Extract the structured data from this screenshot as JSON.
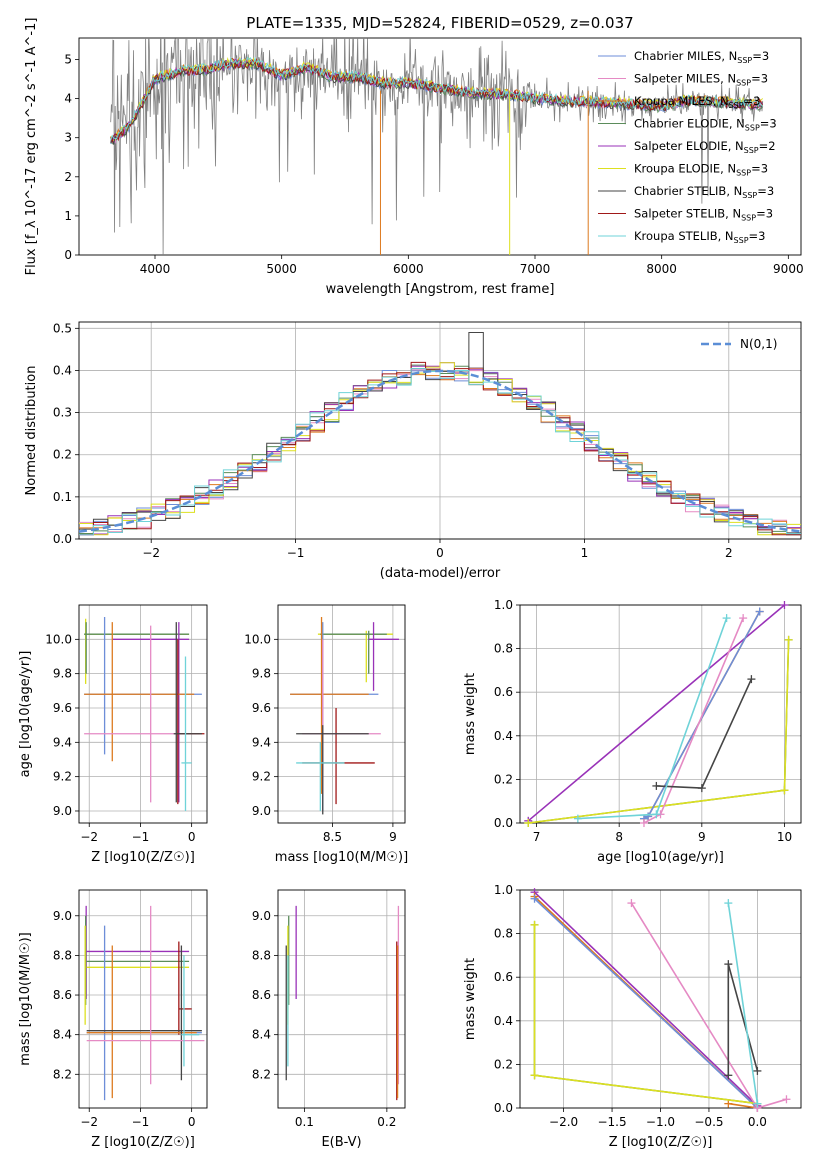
{
  "figure_title": "PLATE=1335, MJD=52824, FIBERID=0529, z=0.037",
  "colors": {
    "Chabrier MILES": "#6d8ed8",
    "Salpeter MILES": "#e58ac4",
    "Kroupa MILES": "#dd7a1f",
    "Chabrier ELODIE": "#5b8c5b",
    "Salpeter ELODIE": "#9932b8",
    "Kroupa ELODIE": "#dde020",
    "Chabrier STELIB": "#454545",
    "Salpeter STELIB": "#a01818",
    "Kroupa STELIB": "#6fd3d8",
    "data": "#808080",
    "normal": "#5b8ed6"
  },
  "chart_data": [
    {
      "id": "spectrum",
      "type": "line",
      "title": "PLATE=1335, MJD=52824, FIBERID=0529, z=0.037",
      "xlabel": "wavelength [Angstrom, rest frame]",
      "ylabel": "Flux [f_λ 10^-17 erg cm^-2 s^-1 A^-1]",
      "xlim": [
        3400,
        9100
      ],
      "ylim": [
        0,
        5.55
      ],
      "xticks": [
        4000,
        5000,
        6000,
        7000,
        8000,
        9000
      ],
      "yticks": [
        0,
        1,
        2,
        3,
        4,
        5
      ],
      "legend_position": "top-right",
      "legend": [
        {
          "name": "Chabrier MILES",
          "nssp": "3"
        },
        {
          "name": "Salpeter MILES",
          "nssp": "3"
        },
        {
          "name": "Kroupa MILES",
          "nssp": "3"
        },
        {
          "name": "Chabrier ELODIE",
          "nssp": "3"
        },
        {
          "name": "Salpeter ELODIE",
          "nssp": "2"
        },
        {
          "name": "Kroupa ELODIE",
          "nssp": "3"
        },
        {
          "name": "Chabrier STELIB",
          "nssp": "3"
        },
        {
          "name": "Salpeter STELIB",
          "nssp": "3"
        },
        {
          "name": "Kroupa STELIB",
          "nssp": "3"
        }
      ],
      "data_range": [
        3650,
        8800
      ],
      "model_continuum": [
        [
          3650,
          2.9
        ],
        [
          3800,
          3.3
        ],
        [
          3900,
          3.9
        ],
        [
          4000,
          4.5
        ],
        [
          4200,
          4.7
        ],
        [
          4400,
          4.75
        ],
        [
          4600,
          4.9
        ],
        [
          4800,
          4.9
        ],
        [
          5000,
          4.6
        ],
        [
          5200,
          4.8
        ],
        [
          5400,
          4.55
        ],
        [
          5600,
          4.55
        ],
        [
          5800,
          4.4
        ],
        [
          6000,
          4.4
        ],
        [
          6200,
          4.3
        ],
        [
          6500,
          4.15
        ],
        [
          6800,
          4.1
        ],
        [
          7000,
          4.0
        ],
        [
          7200,
          3.95
        ],
        [
          7500,
          3.9
        ],
        [
          7800,
          3.85
        ],
        [
          8000,
          3.8
        ],
        [
          8200,
          3.95
        ],
        [
          8500,
          3.9
        ],
        [
          8800,
          3.85
        ]
      ]
    },
    {
      "id": "residuals",
      "type": "histogram",
      "xlabel": "(data-model)/error",
      "ylabel": "Normed distribution",
      "xlim": [
        -2.5,
        2.5
      ],
      "ylim": [
        0,
        0.515
      ],
      "xticks": [
        -2,
        -1,
        0,
        1,
        2
      ],
      "yticks": [
        0.0,
        0.1,
        0.2,
        0.3,
        0.4,
        0.5
      ],
      "legend_position": "top-right",
      "normal_label": "N(0,1)",
      "bin_width": 0.1
    },
    {
      "id": "age_vs_Z",
      "type": "errorbar",
      "xlabel": "Z [log10(Z/Z☉)]",
      "ylabel": "age  [log10(age/yr)]",
      "xlim": [
        -2.2,
        0.3
      ],
      "ylim": [
        8.93,
        10.2
      ],
      "xticks": [
        -2,
        -1,
        0
      ],
      "yticks": [
        9.0,
        9.2,
        9.4,
        9.6,
        9.8,
        10.0
      ],
      "series": [
        {
          "model": "Kroupa ELODIE",
          "hz": [
            -2.1,
            -0.05
          ],
          "hy": 10.03,
          "vx": -2.07,
          "vy": [
            9.74,
            10.12
          ]
        },
        {
          "model": "Chabrier ELODIE",
          "hz": [
            -2.1,
            -0.05
          ],
          "hy": 10.03,
          "vx": -2.06,
          "vy": [
            9.8,
            10.1
          ]
        },
        {
          "model": "Salpeter ELODIE",
          "hz": [
            -1.55,
            -0.05
          ],
          "hy": 10.0,
          "vx": -0.25,
          "vy": [
            9.05,
            10.1
          ]
        },
        {
          "model": "Chabrier MILES",
          "hz": [
            -2.1,
            0.2
          ],
          "hy": 9.68,
          "vx": -1.7,
          "vy": [
            9.33,
            10.13
          ]
        },
        {
          "model": "Kroupa MILES",
          "hz": [
            -2.1,
            0.05
          ],
          "hy": 9.68,
          "vx": -1.55,
          "vy": [
            9.29,
            10.1
          ]
        },
        {
          "model": "Salpeter MILES",
          "hz": [
            -2.1,
            0.15
          ],
          "hy": 9.45,
          "vx": -0.8,
          "vy": [
            9.05,
            10.08
          ]
        },
        {
          "model": "Salpeter STELIB",
          "hz": [
            -0.3,
            0.25
          ],
          "hy": 9.45,
          "vx": -0.27,
          "vy": [
            9.04,
            10.0
          ]
        },
        {
          "model": "Chabrier STELIB",
          "hz": [
            -0.35,
            0.2
          ],
          "hy": 9.45,
          "vx": -0.3,
          "vy": [
            9.05,
            10.1
          ]
        },
        {
          "model": "Kroupa STELIB",
          "hz": [
            -0.2,
            0.0
          ],
          "hy": 9.28,
          "vx": -0.12,
          "vy": [
            9.0,
            9.9
          ]
        }
      ]
    },
    {
      "id": "age_vs_mass",
      "type": "errorbar",
      "xlabel": "mass [log10(M/M☉)]",
      "ylabel": "",
      "xlim": [
        8.05,
        9.1
      ],
      "ylim": [
        8.93,
        10.2
      ],
      "xticks": [
        8.5,
        9.0
      ],
      "yticks": [
        9.0,
        9.2,
        9.4,
        9.6,
        9.8,
        10.0
      ],
      "series": [
        {
          "model": "Kroupa ELODIE",
          "hz": [
            8.38,
            9.0
          ],
          "hy": 10.03,
          "vx": 8.78,
          "vy": [
            9.75,
            10.05
          ]
        },
        {
          "model": "Chabrier ELODIE",
          "hz": [
            8.4,
            8.95
          ],
          "hy": 10.03,
          "vx": 8.8,
          "vy": [
            9.8,
            10.05
          ]
        },
        {
          "model": "Salpeter ELODIE",
          "hz": [
            8.8,
            9.05
          ],
          "hy": 10.0,
          "vx": 8.84,
          "vy": [
            9.7,
            10.1
          ]
        },
        {
          "model": "Chabrier MILES",
          "hz": [
            8.15,
            8.88
          ],
          "hy": 9.68,
          "vx": 8.42,
          "vy": [
            9.0,
            10.1
          ]
        },
        {
          "model": "Kroupa MILES",
          "hz": [
            8.15,
            8.8
          ],
          "hy": 9.68,
          "vx": 8.41,
          "vy": [
            9.1,
            10.13
          ]
        },
        {
          "model": "Salpeter MILES",
          "hz": [
            8.25,
            8.9
          ],
          "hy": 9.45,
          "vx": 8.42,
          "vy": [
            9.1,
            10.0
          ]
        },
        {
          "model": "Salpeter STELIB",
          "hz": [
            8.25,
            8.85
          ],
          "hy": 9.28,
          "vx": 8.53,
          "vy": [
            9.04,
            9.6
          ]
        },
        {
          "model": "Chabrier STELIB",
          "hz": [
            8.2,
            8.8
          ],
          "hy": 9.45,
          "vx": 8.42,
          "vy": [
            8.98,
            9.5
          ]
        },
        {
          "model": "Kroupa STELIB",
          "hz": [
            8.2,
            8.6
          ],
          "hy": 9.28,
          "vx": 8.4,
          "vy": [
            9.0,
            9.4
          ]
        }
      ]
    },
    {
      "id": "weight_vs_age",
      "type": "line",
      "xlabel": "age  [log10(age/yr)]",
      "ylabel": "mass weight",
      "xlim": [
        6.8,
        10.2
      ],
      "ylim": [
        0,
        1.0
      ],
      "xticks": [
        7,
        8,
        9,
        10
      ],
      "yticks": [
        0.0,
        0.2,
        0.4,
        0.6,
        0.8,
        1.0
      ],
      "series": [
        {
          "model": "Salpeter ELODIE",
          "points": [
            [
              6.9,
              0.01
            ],
            [
              10.0,
              1.0
            ]
          ]
        },
        {
          "model": "Chabrier ELODIE",
          "points": [
            [
              6.9,
              0.0
            ],
            [
              10.0,
              0.15
            ],
            [
              10.05,
              0.84
            ]
          ]
        },
        {
          "model": "Kroupa ELODIE",
          "points": [
            [
              6.9,
              0.0
            ],
            [
              10.0,
              0.15
            ],
            [
              10.05,
              0.84
            ]
          ]
        },
        {
          "model": "Kroupa MILES",
          "points": [
            [
              8.3,
              0.02
            ],
            [
              8.35,
              0.03
            ],
            [
              9.7,
              0.97
            ]
          ]
        },
        {
          "model": "Chabrier MILES",
          "points": [
            [
              8.3,
              0.02
            ],
            [
              8.35,
              0.03
            ],
            [
              9.7,
              0.97
            ]
          ]
        },
        {
          "model": "Salpeter MILES",
          "points": [
            [
              8.3,
              0.0
            ],
            [
              8.5,
              0.04
            ],
            [
              9.5,
              0.94
            ]
          ]
        },
        {
          "model": "Chabrier STELIB",
          "points": [
            [
              8.45,
              0.17
            ],
            [
              9.0,
              0.16
            ],
            [
              9.6,
              0.66
            ]
          ]
        },
        {
          "model": "Kroupa STELIB",
          "points": [
            [
              7.5,
              0.02
            ],
            [
              8.45,
              0.04
            ],
            [
              9.3,
              0.94
            ]
          ]
        }
      ]
    },
    {
      "id": "mass_vs_Z",
      "type": "errorbar",
      "xlabel": "Z [log10(Z/Z☉)]",
      "ylabel": "mass [log10(M/M☉)]",
      "xlim": [
        -2.2,
        0.3
      ],
      "ylim": [
        8.03,
        9.13
      ],
      "xticks": [
        -2,
        -1,
        0
      ],
      "yticks": [
        8.2,
        8.4,
        8.6,
        8.8,
        9.0
      ],
      "series": [
        {
          "model": "Salpeter ELODIE",
          "hz": [
            -2.05,
            -0.05
          ],
          "hy": 8.82,
          "vx": -2.06,
          "vy": [
            8.58,
            9.05
          ]
        },
        {
          "model": "Chabrier ELODIE",
          "hz": [
            -2.05,
            -0.05
          ],
          "hy": 8.77,
          "vx": -2.07,
          "vy": [
            8.55,
            9.0
          ]
        },
        {
          "model": "Kroupa ELODIE",
          "hz": [
            -2.05,
            -0.05
          ],
          "hy": 8.74,
          "vx": -2.08,
          "vy": [
            8.45,
            8.95
          ]
        },
        {
          "model": "Salpeter STELIB",
          "hz": [
            -0.25,
            0.0
          ],
          "hy": 8.53,
          "vx": -0.25,
          "vy": [
            8.4,
            8.87
          ]
        },
        {
          "model": "Chabrier MILES",
          "hz": [
            -2.05,
            0.2
          ],
          "hy": 8.41,
          "vx": -1.7,
          "vy": [
            8.07,
            8.95
          ]
        },
        {
          "model": "Kroupa MILES",
          "hz": [
            -2.05,
            0.1
          ],
          "hy": 8.41,
          "vx": -1.55,
          "vy": [
            8.08,
            8.85
          ]
        },
        {
          "model": "Chabrier STELIB",
          "hz": [
            -2.05,
            0.2
          ],
          "hy": 8.42,
          "vx": -0.2,
          "vy": [
            8.17,
            8.85
          ]
        },
        {
          "model": "Salpeter MILES",
          "hz": [
            -2.05,
            0.25
          ],
          "hy": 8.37,
          "vx": -0.8,
          "vy": [
            8.15,
            9.05
          ]
        },
        {
          "model": "Kroupa STELIB",
          "hz": [
            -0.2,
            0.15
          ],
          "hy": 8.4,
          "vx": -0.15,
          "vy": [
            8.24,
            8.8
          ]
        }
      ]
    },
    {
      "id": "mass_vs_ebv",
      "type": "errorbar",
      "xlabel": "E(B-V)",
      "ylabel": "",
      "xlim": [
        0.068,
        0.222
      ],
      "ylim": [
        8.03,
        9.13
      ],
      "xticks": [
        0.1,
        0.2
      ],
      "yticks": [
        8.2,
        8.4,
        8.6,
        8.8,
        9.0
      ],
      "series": [
        {
          "model": "Salpeter ELODIE",
          "hz": [
            0.09,
            0.09
          ],
          "hy": 8.82,
          "vx": 0.09,
          "vy": [
            8.58,
            9.05
          ]
        },
        {
          "model": "Chabrier ELODIE",
          "hz": [
            0.081,
            0.081
          ],
          "hy": 8.77,
          "vx": 0.081,
          "vy": [
            8.55,
            9.0
          ]
        },
        {
          "model": "Kroupa ELODIE",
          "hz": [
            0.08,
            0.08
          ],
          "hy": 8.74,
          "vx": 0.08,
          "vy": [
            8.45,
            8.95
          ]
        },
        {
          "model": "Chabrier STELIB",
          "hz": [
            0.078,
            0.078
          ],
          "hy": 8.42,
          "vx": 0.078,
          "vy": [
            8.17,
            8.85
          ]
        },
        {
          "model": "Kroupa STELIB",
          "hz": [
            0.08,
            0.08
          ],
          "hy": 8.4,
          "vx": 0.08,
          "vy": [
            8.24,
            8.8
          ]
        },
        {
          "model": "Salpeter MILES",
          "hz": [
            0.214,
            0.214
          ],
          "hy": 8.37,
          "vx": 0.214,
          "vy": [
            8.15,
            9.05
          ]
        },
        {
          "model": "Salpeter STELIB",
          "hz": [
            0.212,
            0.212
          ],
          "hy": 8.53,
          "vx": 0.212,
          "vy": [
            8.07,
            8.87
          ]
        },
        {
          "model": "Kroupa MILES",
          "hz": [
            0.213,
            0.213
          ],
          "hy": 8.41,
          "vx": 0.213,
          "vy": [
            8.08,
            8.85
          ]
        }
      ]
    },
    {
      "id": "weight_vs_Z",
      "type": "line",
      "xlabel": "Z [log10(Z/Z☉)]",
      "ylabel": "mass weight",
      "xlim": [
        -2.45,
        0.45
      ],
      "ylim": [
        0,
        1.0
      ],
      "xticks": [
        -2.0,
        -1.5,
        -1.0,
        -0.5,
        0.0
      ],
      "yticks": [
        0.0,
        0.2,
        0.4,
        0.6,
        0.8,
        1.0
      ],
      "series": [
        {
          "model": "Salpeter ELODIE",
          "points": [
            [
              -2.3,
              0.99
            ],
            [
              0.0,
              0.01
            ]
          ]
        },
        {
          "model": "Kroupa MILES",
          "points": [
            [
              -2.3,
              0.97
            ],
            [
              0.0,
              0.0
            ],
            [
              -0.3,
              0.02
            ]
          ]
        },
        {
          "model": "Chabrier MILES",
          "points": [
            [
              -2.3,
              0.96
            ],
            [
              0.0,
              0.0
            ]
          ]
        },
        {
          "model": "Chabrier ELODIE",
          "points": [
            [
              -2.3,
              0.84
            ],
            [
              -2.3,
              0.15
            ],
            [
              0.0,
              0.02
            ]
          ]
        },
        {
          "model": "Kroupa ELODIE",
          "points": [
            [
              -2.3,
              0.84
            ],
            [
              -2.3,
              0.15
            ],
            [
              0.0,
              0.02
            ]
          ]
        },
        {
          "model": "Salpeter MILES",
          "points": [
            [
              -1.3,
              0.94
            ],
            [
              0.0,
              0.0
            ],
            [
              0.3,
              0.04
            ]
          ]
        },
        {
          "model": "Chabrier STELIB",
          "points": [
            [
              -0.3,
              0.15
            ],
            [
              -0.3,
              0.66
            ],
            [
              0.0,
              0.17
            ]
          ]
        },
        {
          "model": "Kroupa STELIB",
          "points": [
            [
              -0.3,
              0.94
            ],
            [
              0.0,
              0.02
            ]
          ]
        }
      ]
    }
  ]
}
